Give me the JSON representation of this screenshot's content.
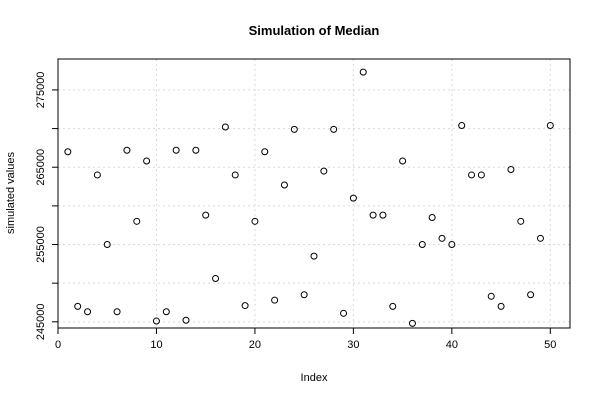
{
  "chart_data": {
    "type": "scatter",
    "title": "Simulation of Median",
    "xlabel": "Index",
    "ylabel": "simulated values",
    "xlim": [
      0,
      52
    ],
    "ylim": [
      244200,
      279000
    ],
    "x_ticks": [
      0,
      10,
      20,
      30,
      40,
      50
    ],
    "x_tick_labels": [
      "0",
      "10",
      "20",
      "30",
      "40",
      "50"
    ],
    "y_ticks": [
      245000,
      250000,
      255000,
      260000,
      265000,
      270000,
      275000
    ],
    "y_tick_labels": [
      "245000",
      "",
      "255000",
      "",
      "265000",
      "",
      "275000"
    ],
    "grid": true,
    "x": [
      1,
      2,
      3,
      4,
      5,
      6,
      7,
      8,
      9,
      10,
      11,
      12,
      13,
      14,
      15,
      16,
      17,
      18,
      19,
      20,
      21,
      22,
      23,
      24,
      25,
      26,
      27,
      28,
      29,
      30,
      31,
      32,
      33,
      34,
      35,
      36,
      37,
      38,
      39,
      40,
      41,
      42,
      43,
      44,
      45,
      46,
      47,
      48,
      49,
      50
    ],
    "y": [
      267000,
      247000,
      246300,
      264000,
      255000,
      246300,
      267200,
      258000,
      265800,
      245100,
      246300,
      267200,
      245200,
      267200,
      258800,
      250600,
      270200,
      264000,
      247100,
      258000,
      267000,
      247800,
      262700,
      269900,
      248500,
      253500,
      264500,
      269900,
      246100,
      261000,
      277300,
      258800,
      258800,
      247000,
      265800,
      244800,
      255000,
      258500,
      255800,
      255000,
      270400,
      264000,
      264000,
      248300,
      247000,
      264700,
      258000,
      248500,
      255800,
      270400
    ]
  }
}
